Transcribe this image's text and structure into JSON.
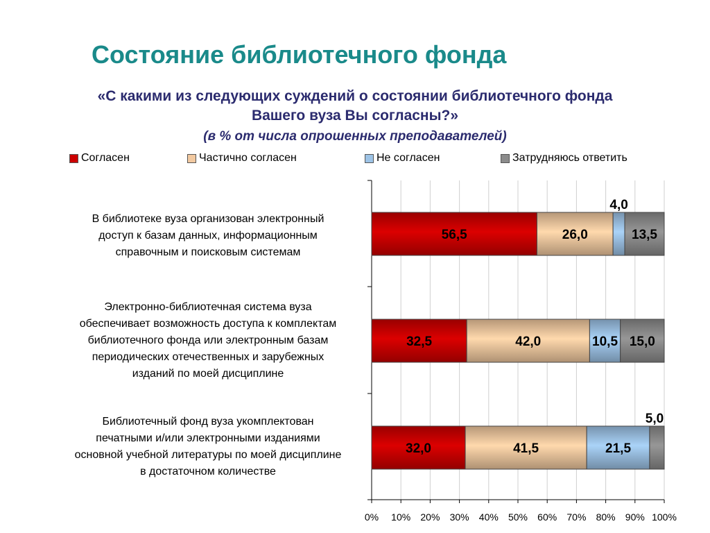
{
  "title": "Состояние библиотечного фонда",
  "question_line1": "«С какими из следующих суждений о состоянии библиотечного фонда",
  "question_line2": "Вашего вуза Вы согласны?»",
  "note": "(в % от числа опрошенных преподавателей)",
  "chart_data": {
    "type": "bar",
    "orientation": "horizontal",
    "stacked": true,
    "categories": [
      "В библиотеке вуза организован электронный доступ к базам данных, информационным справочным и поисковым системам",
      "Электронно-библиотечная система вуза обеспечивает возможность доступа к комплектам библиотечного фонда или электронным базам периодических отечественных и зарубежных изданий по моей дисциплине",
      "Библиотечный фонд вуза укомплектован печатными и/или электронными изданиями основной учебной литературы по моей дисциплине в достаточном количестве"
    ],
    "category_lines": [
      [
        "В библиотеке вуза организован электронный",
        "доступ к базам данных, информационным",
        "справочным и поисковым системам"
      ],
      [
        "Электронно-библиотечная система вуза",
        "обеспечивает возможность доступа к комплектам",
        "библиотечного фонда или электронным базам",
        "периодических отечественных и зарубежных",
        "изданий по моей дисциплине"
      ],
      [
        "Библиотечный фонд вуза укомплектован",
        "печатными и/или электронными изданиями",
        "основной учебной литературы по моей дисциплине",
        "в достаточном количестве"
      ]
    ],
    "series": [
      {
        "name": "Согласен",
        "color": "#cc0000",
        "values": [
          56.5,
          32.5,
          32.0
        ],
        "labels": [
          "56,5",
          "32,5",
          "32,0"
        ]
      },
      {
        "name": "Частично согласен",
        "color": "#f2c9a0",
        "values": [
          26.0,
          42.0,
          41.5
        ],
        "labels": [
          "26,0",
          "42,0",
          "41,5"
        ]
      },
      {
        "name": "Не согласен",
        "color": "#9dc3e6",
        "values": [
          4.0,
          10.5,
          21.5
        ],
        "labels": [
          "4,0",
          "10,5",
          "21,5"
        ]
      },
      {
        "name": "Затрудняюсь ответить",
        "color": "#8c8c8c",
        "values": [
          13.5,
          15.0,
          5.0
        ],
        "labels": [
          "13,5",
          "15,0",
          "5,0"
        ]
      }
    ],
    "xlim": [
      0,
      100
    ],
    "x_ticks": [
      "0%",
      "10%",
      "20%",
      "30%",
      "40%",
      "50%",
      "60%",
      "70%",
      "80%",
      "90%",
      "100%"
    ],
    "grid": true,
    "legend": "top"
  }
}
